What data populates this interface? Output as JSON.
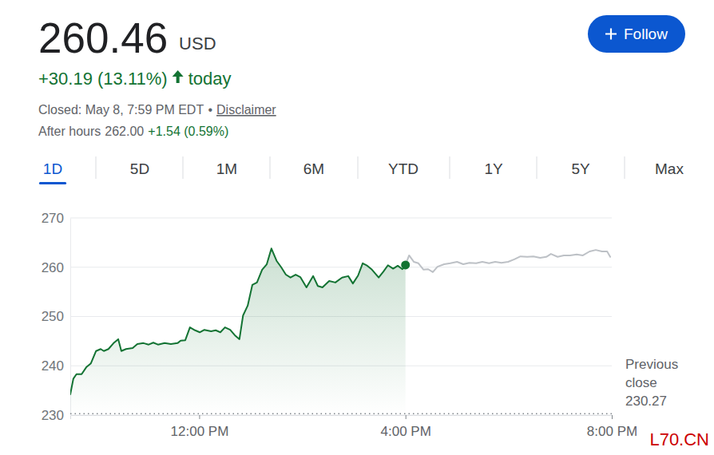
{
  "header": {
    "price": "260.46",
    "currency": "USD",
    "change": "+30.19 (13.11%)",
    "change_period": "today",
    "status": "Closed: May 8, 7:59 PM EDT",
    "separator": "•",
    "disclaimer": "Disclaimer",
    "after_hours_label": "After hours",
    "after_hours_price": "262.00",
    "after_hours_change": "+1.54 (0.59%)",
    "follow": "Follow"
  },
  "range_tabs": {
    "items": [
      "1D",
      "5D",
      "1M",
      "6M",
      "YTD",
      "1Y",
      "5Y",
      "Max"
    ],
    "active": "1D"
  },
  "watermark": "L70.CN",
  "chart_data": {
    "type": "line",
    "x": [
      9.5,
      9.56,
      9.62,
      9.72,
      9.81,
      9.9,
      10.0,
      10.09,
      10.15,
      10.24,
      10.34,
      10.43,
      10.49,
      10.58,
      10.71,
      10.8,
      10.92,
      11.02,
      11.11,
      11.2,
      11.33,
      11.45,
      11.58,
      11.64,
      11.73,
      11.82,
      11.92,
      12.01,
      12.1,
      12.23,
      12.32,
      12.41,
      12.5,
      12.6,
      12.69,
      12.78,
      12.85,
      12.94,
      13.03,
      13.12,
      13.22,
      13.31,
      13.4,
      13.5,
      13.59,
      13.68,
      13.77,
      13.87,
      13.96,
      14.08,
      14.21,
      14.3,
      14.39,
      14.52,
      14.64,
      14.77,
      14.89,
      14.98,
      15.08,
      15.17,
      15.26,
      15.35,
      15.48,
      15.57,
      15.66,
      15.76,
      15.85,
      15.94,
      16.0,
      16.07,
      16.16,
      16.25,
      16.35,
      16.44,
      16.53,
      16.62,
      16.75,
      16.87,
      17.0,
      17.12,
      17.24,
      17.37,
      17.49,
      17.62,
      17.74,
      17.86,
      17.99,
      18.11,
      18.23,
      18.36,
      18.48,
      18.61,
      18.73,
      18.82,
      18.95,
      19.07,
      19.19,
      19.32,
      19.44,
      19.57,
      19.69,
      19.81,
      19.91,
      19.97
    ],
    "series": [
      {
        "type": "area",
        "color": "#137333",
        "values": [
          234.2,
          237.4,
          238.3,
          238.3,
          239.7,
          240.5,
          243.0,
          243.4,
          243.0,
          243.4,
          244.6,
          245.4,
          243.0,
          243.4,
          243.6,
          244.4,
          244.6,
          244.3,
          244.7,
          244.3,
          244.6,
          244.4,
          244.6,
          245.1,
          245.2,
          247.8,
          247.2,
          246.8,
          247.3,
          247.0,
          247.2,
          246.8,
          247.8,
          247.3,
          246.2,
          245.4,
          250.2,
          252.2,
          256.4,
          256.9,
          259.5,
          260.6,
          263.8,
          261.3,
          260.0,
          258.5,
          257.9,
          258.5,
          258.0,
          255.9,
          258.2,
          256.2,
          255.9,
          257.2,
          256.9,
          257.9,
          258.2,
          256.7,
          258.3,
          260.8,
          260.3,
          259.5,
          257.9,
          259.1,
          260.4,
          259.7,
          260.3,
          259.6,
          260.46,
          null,
          null,
          null,
          null,
          null,
          null,
          null,
          null,
          null,
          null,
          null,
          null,
          null,
          null,
          null,
          null,
          null,
          null,
          null,
          null,
          null,
          null,
          null,
          null,
          null,
          null,
          null,
          null,
          null,
          null,
          null,
          null,
          null,
          null,
          null
        ]
      },
      {
        "type": "line",
        "color": "#bdc1c6",
        "values": [
          null,
          null,
          null,
          null,
          null,
          null,
          null,
          null,
          null,
          null,
          null,
          null,
          null,
          null,
          null,
          null,
          null,
          null,
          null,
          null,
          null,
          null,
          null,
          null,
          null,
          null,
          null,
          null,
          null,
          null,
          null,
          null,
          null,
          null,
          null,
          null,
          null,
          null,
          null,
          null,
          null,
          null,
          null,
          null,
          null,
          null,
          null,
          null,
          null,
          null,
          null,
          null,
          null,
          null,
          null,
          null,
          null,
          null,
          null,
          null,
          null,
          null,
          null,
          null,
          null,
          null,
          null,
          null,
          260.46,
          262.4,
          261.1,
          260.8,
          259.5,
          259.6,
          259.0,
          260.1,
          260.6,
          260.8,
          261.1,
          260.6,
          260.9,
          260.8,
          261.1,
          260.8,
          261.1,
          260.9,
          261.1,
          261.6,
          262.2,
          262.1,
          262.2,
          261.9,
          262.1,
          262.7,
          262.1,
          262.4,
          262.4,
          262.6,
          262.4,
          263.2,
          263.5,
          263.2,
          263.2,
          262.1
        ]
      }
    ],
    "xlim": [
      9.5,
      20
    ],
    "xticks": [
      {
        "value": 12,
        "label": "12:00 PM"
      },
      {
        "value": 16,
        "label": "4:00 PM"
      },
      {
        "value": 20,
        "label": "8:00 PM"
      }
    ],
    "ylim": [
      230,
      270
    ],
    "yticks": [
      230,
      240,
      250,
      260,
      270
    ],
    "grid": true,
    "reference_line": {
      "label": "Previous close",
      "value": 230.27
    }
  }
}
